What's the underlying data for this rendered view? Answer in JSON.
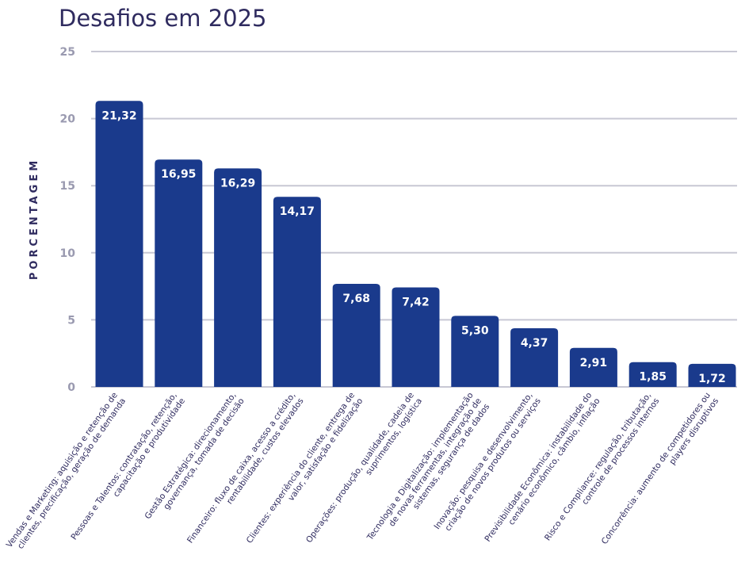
{
  "chart_data": {
    "type": "bar",
    "title": "Desafios em 2025",
    "ylabel": "PORCENTAGEM",
    "xlabel": "",
    "ylim": [
      0,
      25
    ],
    "yticks": [
      0,
      5,
      10,
      15,
      20,
      25
    ],
    "grid": true,
    "bar_color": "#1a3a8c",
    "categories": [
      [
        "Vendas e Marketing: aquisição e retenção de",
        "clientes, precificação, geração de demanda"
      ],
      [
        "Pessoas e Talentos: contratação, retenção,",
        "capacitação e produtividade"
      ],
      [
        "Gestão Estratégica: direcionamento,",
        "governança, tomada de decisão"
      ],
      [
        "Financeiro: fluxo de caixa, acesso a crédito,",
        "rentabilidade, custos elevados"
      ],
      [
        "Clientes: experiência do cliente, entrega de",
        "valor, satisfação e fidelização"
      ],
      [
        "Operações: produção, qualidade, cadeia de",
        "suprimentos, logística"
      ],
      [
        "Tecnologia e Digitalização: implementação",
        "de novas ferramentas, integração de",
        "sistemas, segurança de dados"
      ],
      [
        "Inovação: pesquisa e desenvolvimento,",
        "criação de novos produtos ou serviços"
      ],
      [
        "Previsibilidade Econômica: instabilidade do",
        "cenário econômico, câmbio, inflação"
      ],
      [
        "Risco e Compliance: regulação, tributação,",
        "controle de processos internos"
      ],
      [
        "Concorrência: aumento de competidores ou",
        "players disruptivos"
      ]
    ],
    "values": [
      21.32,
      16.95,
      16.29,
      14.17,
      7.68,
      7.42,
      5.3,
      4.37,
      2.91,
      1.85,
      1.72
    ],
    "value_labels": [
      "21,32",
      "16,95",
      "16,29",
      "14,17",
      "7,68",
      "7,42",
      "5,30",
      "4,37",
      "2,91",
      "1,85",
      "1,72"
    ]
  }
}
